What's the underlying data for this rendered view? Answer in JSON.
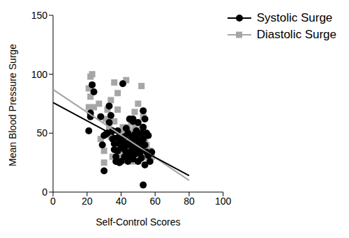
{
  "chart_data": {
    "type": "scatter",
    "x_label": "Self-Control Scores",
    "y_label": "Mean Blood Pressure Surge",
    "xlim": [
      0,
      100
    ],
    "xticks": [
      0,
      20,
      40,
      60,
      80,
      100
    ],
    "ylim": [
      0,
      150
    ],
    "yticks": [
      0,
      50,
      100,
      150
    ],
    "legend": "top-right",
    "series": [
      {
        "name": "Systolic Surge",
        "color": "#000000",
        "marker": "circle",
        "x": [
          21,
          22,
          22,
          23,
          24,
          28,
          29,
          30,
          30,
          31,
          32,
          33,
          33,
          34,
          35,
          35,
          36,
          36,
          37,
          37,
          38,
          38,
          39,
          39,
          40,
          40,
          41,
          41,
          42,
          42,
          43,
          43,
          43,
          44,
          44,
          45,
          45,
          45,
          46,
          46,
          47,
          47,
          47,
          48,
          48,
          48,
          49,
          49,
          50,
          50,
          50,
          51,
          51,
          52,
          52,
          52,
          53,
          53,
          53,
          53,
          54,
          54,
          54,
          55,
          55,
          56,
          56,
          57,
          58,
          47,
          49,
          40,
          38,
          44,
          42
        ],
        "values": [
          52,
          67,
          64,
          91,
          85,
          64,
          40,
          18,
          48,
          49,
          50,
          73,
          59,
          65,
          45,
          52,
          41,
          36,
          26,
          30,
          46,
          52,
          25,
          41,
          38,
          45,
          44,
          92,
          36,
          30,
          41,
          34,
          54,
          40,
          26,
          62,
          42,
          30,
          46,
          35,
          60,
          39,
          28,
          49,
          42,
          32,
          47,
          37,
          59,
          45,
          26,
          42,
          33,
          50,
          37,
          29,
          69,
          55,
          45,
          6,
          62,
          40,
          23,
          50,
          34,
          31,
          48,
          26,
          34,
          62,
          52,
          26,
          35,
          50,
          47
        ],
        "fit": {
          "x": [
            0,
            80
          ],
          "values": [
            76,
            14
          ]
        }
      },
      {
        "name": "Diastolic Surge",
        "color": "#a6a6a6",
        "marker": "square",
        "x": [
          21,
          21,
          22,
          22,
          23,
          24,
          27,
          28,
          30,
          30,
          31,
          32,
          33,
          34,
          34,
          35,
          36,
          36,
          37,
          38,
          38,
          39,
          40,
          41,
          42,
          42,
          43,
          44,
          44,
          45,
          46,
          46,
          47,
          47,
          48,
          48,
          49,
          50,
          50,
          51,
          52,
          52,
          52,
          53,
          54,
          55,
          56,
          57,
          58,
          53,
          40,
          45,
          37,
          49,
          43,
          51,
          44,
          56
        ],
        "values": [
          88,
          72,
          98,
          81,
          100,
          72,
          75,
          45,
          35,
          25,
          62,
          70,
          55,
          78,
          47,
          30,
          93,
          60,
          40,
          84,
          70,
          35,
          50,
          55,
          38,
          32,
          95,
          55,
          42,
          30,
          60,
          37,
          45,
          26,
          68,
          55,
          35,
          75,
          47,
          40,
          90,
          55,
          30,
          64,
          45,
          40,
          35,
          35,
          30,
          33,
          30,
          51,
          28,
          48,
          27,
          28,
          33,
          29
        ],
        "fit": {
          "x": [
            0,
            80
          ],
          "values": [
            87,
            10
          ]
        }
      }
    ]
  }
}
